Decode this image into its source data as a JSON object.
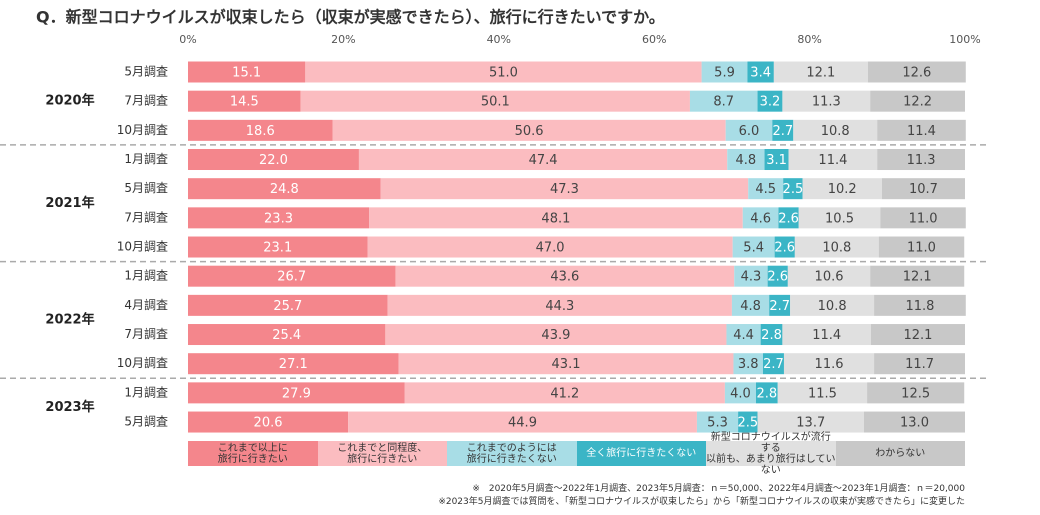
{
  "chart_data": {
    "type": "stacked-bar-horizontal",
    "title": "Q．新型コロナウイルスが収束したら（収束が実感できたら）、旅行に行きたいですか。",
    "xlim": [
      0,
      100
    ],
    "xticks": [
      {
        "value": 0,
        "label": "0%"
      },
      {
        "value": 20,
        "label": "20%"
      },
      {
        "value": 40,
        "label": "40%"
      },
      {
        "value": 60,
        "label": "60%"
      },
      {
        "value": 80,
        "label": "80%"
      },
      {
        "value": 100,
        "label": "100%"
      }
    ],
    "groups": [
      {
        "name": "2020年",
        "categories": [
          "5月調査",
          "7月調査",
          "10月調査"
        ]
      },
      {
        "name": "2021年",
        "categories": [
          "1月調査",
          "5月調査",
          "7月調査",
          "10月調査"
        ]
      },
      {
        "name": "2022年",
        "categories": [
          "1月調査",
          "4月調査",
          "7月調査",
          "10月調査"
        ]
      },
      {
        "name": "2023年",
        "categories": [
          "1月調査",
          "5月調査"
        ]
      }
    ],
    "series": [
      {
        "name": "これまで以上に\n旅行に行きたい",
        "color": "#f4868c",
        "values": [
          15.1,
          14.5,
          18.6,
          22.0,
          24.8,
          23.3,
          23.1,
          26.7,
          25.7,
          25.4,
          27.1,
          27.9,
          20.6
        ],
        "value_labels": [
          "15.1",
          "14.5",
          "18.6",
          "22.0",
          "24.8",
          "23.3",
          "23.1",
          "26.7",
          "25.7",
          "25.4",
          "27.1",
          "27.9",
          "20.6"
        ]
      },
      {
        "name": "これまでと同程度、\n旅行に行きたい",
        "color": "#fbbcc0",
        "values": [
          51.0,
          50.1,
          50.6,
          47.4,
          47.3,
          48.1,
          47.0,
          43.6,
          44.3,
          43.9,
          43.1,
          41.2,
          44.9
        ],
        "value_labels": [
          "51.0",
          "50.1",
          "50.6",
          "47.4",
          "47.3",
          "48.1",
          "47.0",
          "43.6",
          "44.3",
          "43.9",
          "43.1",
          "41.2",
          "44.9"
        ]
      },
      {
        "name": "これまでのようには\n旅行に行きたくない",
        "color": "#a8dde6",
        "values": [
          5.9,
          8.7,
          6.0,
          4.8,
          4.5,
          4.6,
          5.4,
          4.3,
          4.8,
          4.4,
          3.8,
          4.0,
          5.3
        ],
        "value_labels": [
          "5.9",
          "8.7",
          "6.0",
          "4.8",
          "4.5",
          "4.6",
          "5.4",
          "4.3",
          "4.8",
          "4.4",
          "3.8",
          "4.0",
          "5.3"
        ]
      },
      {
        "name": "全く旅行に行きたくない",
        "color": "#3bb5c6",
        "values": [
          3.4,
          3.2,
          2.7,
          3.1,
          2.5,
          2.6,
          2.6,
          2.6,
          2.7,
          2.8,
          2.7,
          2.8,
          2.5
        ],
        "value_labels": [
          "3.4",
          "3.2",
          "2.7",
          "3.1",
          "2.5",
          "2.6",
          "2.6",
          "2.6",
          "2.7",
          "2.8",
          "2.7",
          "2.8",
          "2.5"
        ]
      },
      {
        "name": "新型コロナウイルスが流行する\n以前も、あまり旅行はしていない",
        "color": "#e0e0e0",
        "values": [
          12.1,
          11.3,
          10.8,
          11.4,
          10.2,
          10.5,
          10.8,
          10.6,
          10.8,
          11.4,
          11.6,
          11.5,
          13.7
        ],
        "value_labels": [
          "12.1",
          "11.3",
          "10.8",
          "11.4",
          "10.2",
          "10.5",
          "10.8",
          "10.6",
          "10.8",
          "11.4",
          "11.6",
          "11.5",
          "13.7"
        ]
      },
      {
        "name": "わからない",
        "color": "#c8c8c8",
        "values": [
          12.6,
          12.2,
          11.4,
          11.3,
          10.7,
          11.0,
          11.0,
          12.1,
          11.8,
          12.1,
          11.7,
          12.5,
          13.0
        ],
        "value_labels": [
          "12.6",
          "12.2",
          "11.4",
          "11.3",
          "10.7",
          "11.0",
          "11.0",
          "12.1",
          "11.8",
          "12.1",
          "11.7",
          "12.5",
          "13.0"
        ]
      }
    ],
    "notes": [
      "※　2020年5月調査～2022年1月調査、2023年5月調査：ｎ＝50,000、2022年4月調査～2023年1月調査：ｎ＝20,000",
      "※2023年5月調査では質問を、「新型コロナウイルスが収束したら」から「新型コロナウイルスの収束が実感できたら」に変更した"
    ]
  }
}
